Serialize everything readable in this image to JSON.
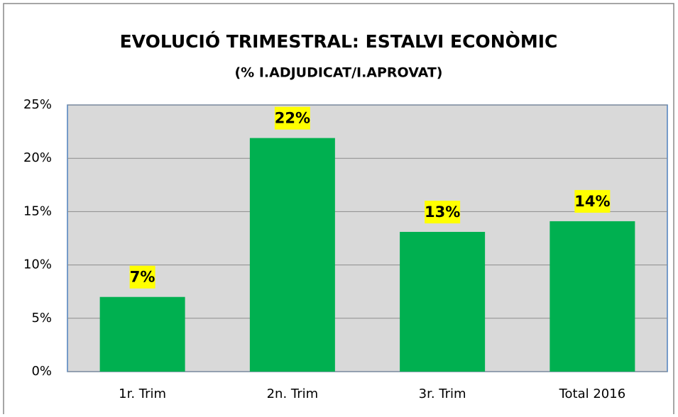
{
  "chart_data": {
    "type": "bar",
    "title": "EVOLUCIÓ TRIMESTRAL: ESTALVI ECONÒMIC",
    "subtitle": "(%  I.ADJUDICAT/I.APROVAT)",
    "categories": [
      "1r. Trim",
      "2n. Trim",
      "3r. Trim",
      "Total 2016"
    ],
    "values": [
      7,
      21.9,
      13.1,
      14.1
    ],
    "value_labels": [
      "7%",
      "22%",
      "13%",
      "14%"
    ],
    "color": "#00b050",
    "ylim": [
      0,
      25
    ],
    "yticks": [
      {
        "value": 0,
        "label": "0%"
      },
      {
        "value": 5,
        "label": "5%"
      },
      {
        "value": 10,
        "label": "10%"
      },
      {
        "value": 15,
        "label": "15%"
      },
      {
        "value": 20,
        "label": "20%"
      },
      {
        "value": 25,
        "label": "25%"
      }
    ],
    "grid": true
  }
}
